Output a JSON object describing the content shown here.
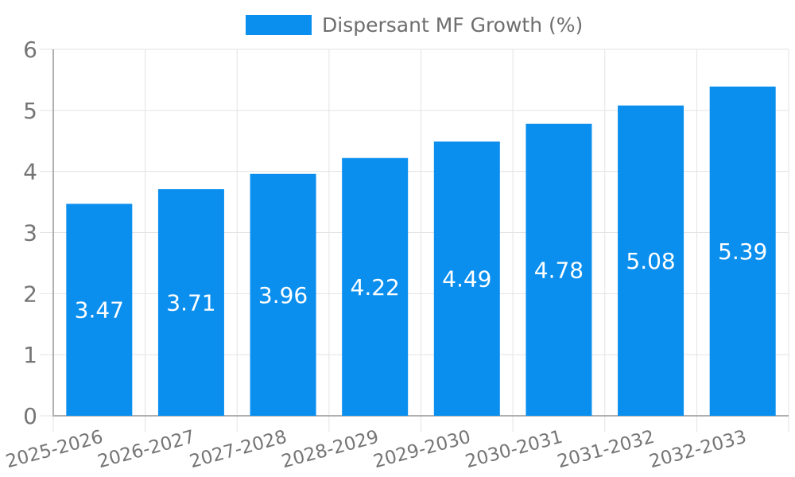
{
  "legend": {
    "label": "Dispersant MF Growth (%)"
  },
  "chart_data": {
    "type": "bar",
    "title": "",
    "legend_entries": [
      "Dispersant MF Growth (%)"
    ],
    "legend_position": "top-center",
    "categories": [
      "2025-2026",
      "2026-2027",
      "2027-2028",
      "2028-2029",
      "2029-2030",
      "2030-2031",
      "2031-2032",
      "2032-2033"
    ],
    "series": [
      {
        "name": "Dispersant MF Growth (%)",
        "values": [
          3.47,
          3.71,
          3.96,
          4.22,
          4.49,
          4.78,
          5.08,
          5.39
        ]
      }
    ],
    "value_labels": [
      "3.47",
      "3.71",
      "3.96",
      "4.22",
      "4.49",
      "4.78",
      "5.08",
      "5.39"
    ],
    "xlabel": "",
    "ylabel": "",
    "ylim": [
      0,
      6
    ],
    "yticks": [
      0,
      1,
      2,
      3,
      4,
      5,
      6
    ],
    "grid": "on",
    "x_label_rotation_deg": -15,
    "colors": {
      "bar": "#0a8fef",
      "bar_label": "#ffffff",
      "axis_text": "#757575",
      "legend_text": "#6e6e6e",
      "gridline": "#e3e3e3",
      "axis_line": "#b0b0b0",
      "background": "#ffffff"
    }
  }
}
